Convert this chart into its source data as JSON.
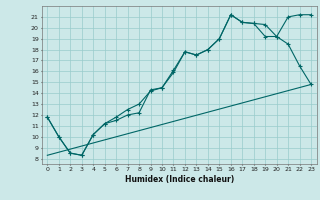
{
  "title": "",
  "xlabel": "Humidex (Indice chaleur)",
  "bg_color": "#cce8e8",
  "line_color": "#006666",
  "grid_color": "#99cccc",
  "xlim": [
    -0.5,
    23.5
  ],
  "ylim": [
    7.5,
    22.0
  ],
  "yticks": [
    8,
    9,
    10,
    11,
    12,
    13,
    14,
    15,
    16,
    17,
    18,
    19,
    20,
    21
  ],
  "xticks": [
    0,
    1,
    2,
    3,
    4,
    5,
    6,
    7,
    8,
    9,
    10,
    11,
    12,
    13,
    14,
    15,
    16,
    17,
    18,
    19,
    20,
    21,
    22,
    23
  ],
  "line1_x": [
    0,
    1,
    2,
    3,
    4,
    5,
    6,
    7,
    8,
    9,
    10,
    11,
    12,
    13,
    14,
    15,
    16,
    17,
    18,
    19,
    20,
    21,
    22,
    23
  ],
  "line1_y": [
    11.8,
    10.0,
    8.5,
    8.3,
    10.2,
    11.2,
    11.5,
    12.0,
    12.2,
    14.3,
    14.5,
    16.1,
    17.8,
    17.5,
    18.0,
    19.0,
    21.2,
    20.5,
    20.4,
    20.3,
    19.2,
    18.5,
    16.5,
    14.8
  ],
  "line2_x": [
    0,
    1,
    2,
    3,
    4,
    5,
    6,
    7,
    8,
    9,
    10,
    11,
    12,
    13,
    14,
    15,
    16,
    17,
    18,
    19,
    20,
    21,
    22,
    23
  ],
  "line2_y": [
    11.8,
    10.0,
    8.5,
    8.3,
    10.2,
    11.2,
    11.8,
    12.5,
    13.0,
    14.2,
    14.5,
    15.9,
    17.8,
    17.5,
    18.0,
    19.0,
    21.2,
    20.5,
    20.4,
    19.2,
    19.2,
    21.0,
    21.2,
    21.2
  ],
  "line3_x": [
    0,
    23
  ],
  "line3_y": [
    8.3,
    14.8
  ]
}
